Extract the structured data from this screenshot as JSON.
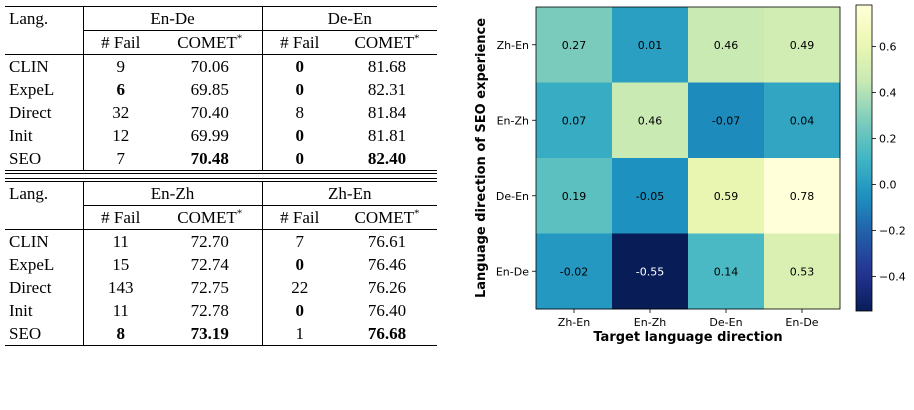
{
  "table_top": {
    "lang_header": "Lang.",
    "groups": [
      "En-De",
      "De-En"
    ],
    "subheaders": [
      "# Fail",
      "COMET",
      "# Fail",
      "COMET"
    ],
    "comet_marker": "*",
    "rows": [
      {
        "lang": "CLIN",
        "cells": [
          "9",
          "70.06",
          "0",
          "81.68"
        ],
        "bold": [
          false,
          false,
          true,
          false
        ]
      },
      {
        "lang": "ExpeL",
        "cells": [
          "6",
          "69.85",
          "0",
          "82.31"
        ],
        "bold": [
          true,
          false,
          true,
          false
        ]
      },
      {
        "lang": "Direct",
        "cells": [
          "32",
          "70.40",
          "8",
          "81.84"
        ],
        "bold": [
          false,
          false,
          false,
          false
        ]
      },
      {
        "lang": "Init",
        "cells": [
          "12",
          "69.99",
          "0",
          "81.81"
        ],
        "bold": [
          false,
          false,
          true,
          false
        ]
      },
      {
        "lang": "SEO",
        "cells": [
          "7",
          "70.48",
          "0",
          "82.40"
        ],
        "bold": [
          false,
          true,
          true,
          true
        ]
      }
    ]
  },
  "table_bottom": {
    "lang_header": "Lang.",
    "groups": [
      "En-Zh",
      "Zh-En"
    ],
    "subheaders": [
      "# Fail",
      "COMET",
      "# Fail",
      "COMET"
    ],
    "comet_marker": "*",
    "rows": [
      {
        "lang": "CLIN",
        "cells": [
          "11",
          "72.70",
          "7",
          "76.61"
        ],
        "bold": [
          false,
          false,
          false,
          false
        ]
      },
      {
        "lang": "ExpeL",
        "cells": [
          "15",
          "72.74",
          "0",
          "76.46"
        ],
        "bold": [
          false,
          false,
          true,
          false
        ]
      },
      {
        "lang": "Direct",
        "cells": [
          "143",
          "72.75",
          "22",
          "76.26"
        ],
        "bold": [
          false,
          false,
          false,
          false
        ]
      },
      {
        "lang": "Init",
        "cells": [
          "11",
          "72.78",
          "0",
          "76.40"
        ],
        "bold": [
          false,
          false,
          true,
          false
        ]
      },
      {
        "lang": "SEO",
        "cells": [
          "8",
          "73.19",
          "1",
          "76.68"
        ],
        "bold": [
          true,
          true,
          false,
          true
        ]
      }
    ]
  },
  "chart_data": {
    "type": "heatmap",
    "xlabel": "Target language direction",
    "ylabel": "Language direction of SEO experience",
    "x_categories": [
      "Zh-En",
      "En-Zh",
      "De-En",
      "En-De"
    ],
    "y_categories": [
      "Zh-En",
      "En-Zh",
      "De-En",
      "En-De"
    ],
    "values": [
      [
        0.27,
        0.01,
        0.46,
        0.49
      ],
      [
        0.07,
        0.46,
        -0.07,
        0.04
      ],
      [
        0.19,
        -0.05,
        0.59,
        0.78
      ],
      [
        -0.02,
        -0.55,
        0.14,
        0.53
      ]
    ],
    "value_labels": [
      [
        "0.27",
        "0.01",
        "0.46",
        "0.49"
      ],
      [
        "0.07",
        "0.46",
        "-0.07",
        "0.04"
      ],
      [
        "0.19",
        "-0.05",
        "0.59",
        "0.78"
      ],
      [
        "-0.02",
        "-0.55",
        "0.14",
        "0.53"
      ]
    ],
    "colormap": "YlGnBu",
    "vmin": -0.55,
    "vmax": 0.78,
    "colorbar_ticks": [
      -0.4,
      -0.2,
      0.0,
      0.2,
      0.4,
      0.6
    ],
    "colorbar_tick_labels": [
      "−0.4",
      "−0.2",
      "0.0",
      "0.2",
      "0.4",
      "0.6"
    ]
  }
}
